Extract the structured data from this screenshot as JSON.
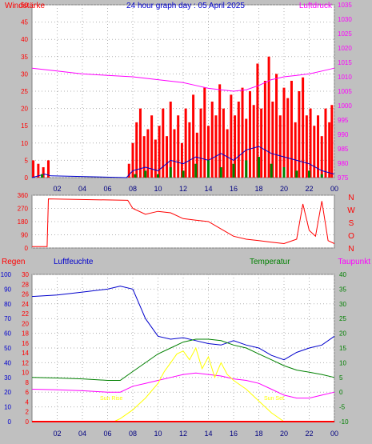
{
  "header": {
    "title": "24 hour graph day : 05 April 2025",
    "left_label": "Windstärke",
    "right_label": "Luftdruck"
  },
  "labels": {
    "regen": "Regen",
    "luftfeuchte": "Luftfeuchte",
    "temperatur": "Temperatur",
    "taupunkt": "Taupunkt",
    "sun_rise": "Sun Rise",
    "sun_set": "Sun Set",
    "dir_letters": [
      "N",
      "W",
      "S",
      "O",
      "N"
    ]
  },
  "colors": {
    "background": "#c0c0c0",
    "plot_bg": "#ffffff",
    "wind": "#ff0000",
    "gust_avg": "#0000cc",
    "pressure": "#ff00ff",
    "green": "#008000",
    "humidity": "#0000cc",
    "temperature": "#008000",
    "dewpoint": "#ff00ff",
    "sun": "#ffff00",
    "rain": "#ff0000"
  },
  "chart_data": [
    {
      "type": "line",
      "title": "24 hour graph day : 05 April 2025",
      "x_ticks": [
        "02",
        "04",
        "06",
        "08",
        "10",
        "12",
        "14",
        "16",
        "18",
        "20",
        "22",
        "00"
      ],
      "xlim": [
        0,
        24
      ],
      "left_axis": {
        "label": "Windstärke",
        "ticks": [
          0,
          5,
          10,
          15,
          20,
          25,
          30,
          35,
          40,
          45,
          50
        ],
        "ylim": [
          0,
          50
        ]
      },
      "right_axis": {
        "label": "Luftdruck",
        "ticks": [
          975,
          980,
          985,
          990,
          995,
          1000,
          1005,
          1010,
          1015,
          1020,
          1025,
          1030,
          1035
        ],
        "ylim": [
          975,
          1035
        ]
      },
      "series": [
        {
          "type": "bar",
          "axis": "left",
          "color": "#ff0000",
          "points": [
            [
              0.1,
              5
            ],
            [
              0.5,
              4
            ],
            [
              0.9,
              3
            ],
            [
              1.3,
              5
            ],
            [
              7.7,
              4
            ],
            [
              8.0,
              10
            ],
            [
              8.3,
              16
            ],
            [
              8.6,
              20
            ],
            [
              8.9,
              12
            ],
            [
              9.2,
              14
            ],
            [
              9.5,
              18
            ],
            [
              9.8,
              11
            ],
            [
              10.1,
              15
            ],
            [
              10.4,
              20
            ],
            [
              10.7,
              12
            ],
            [
              11.0,
              22
            ],
            [
              11.3,
              14
            ],
            [
              11.6,
              18
            ],
            [
              11.9,
              10
            ],
            [
              12.2,
              20
            ],
            [
              12.5,
              16
            ],
            [
              12.8,
              24
            ],
            [
              13.1,
              13
            ],
            [
              13.4,
              20
            ],
            [
              13.7,
              26
            ],
            [
              14.0,
              15
            ],
            [
              14.3,
              22
            ],
            [
              14.6,
              18
            ],
            [
              14.9,
              27
            ],
            [
              15.2,
              20
            ],
            [
              15.5,
              14
            ],
            [
              15.8,
              24
            ],
            [
              16.1,
              18
            ],
            [
              16.4,
              22
            ],
            [
              16.7,
              26
            ],
            [
              17.0,
              17
            ],
            [
              17.3,
              25
            ],
            [
              17.6,
              21
            ],
            [
              17.9,
              33
            ],
            [
              18.2,
              20
            ],
            [
              18.5,
              28
            ],
            [
              18.8,
              35
            ],
            [
              19.1,
              22
            ],
            [
              19.4,
              30
            ],
            [
              19.7,
              18
            ],
            [
              20.0,
              26
            ],
            [
              20.3,
              23
            ],
            [
              20.6,
              28
            ],
            [
              20.9,
              16
            ],
            [
              21.2,
              25
            ],
            [
              21.5,
              29
            ],
            [
              21.8,
              18
            ],
            [
              22.1,
              20
            ],
            [
              22.4,
              15
            ],
            [
              22.7,
              18
            ],
            [
              23.0,
              12
            ],
            [
              23.3,
              20
            ],
            [
              23.6,
              16
            ],
            [
              23.8,
              21
            ]
          ]
        },
        {
          "type": "line",
          "axis": "left",
          "color": "#0000cc",
          "points": [
            [
              0,
              0
            ],
            [
              1,
              1
            ],
            [
              1.5,
              0.5
            ],
            [
              7.5,
              0
            ],
            [
              8,
              2
            ],
            [
              9,
              3
            ],
            [
              10,
              2
            ],
            [
              11,
              5
            ],
            [
              12,
              4
            ],
            [
              13,
              6
            ],
            [
              14,
              5
            ],
            [
              15,
              7
            ],
            [
              16,
              5
            ],
            [
              17,
              8
            ],
            [
              18,
              9
            ],
            [
              19,
              7
            ],
            [
              20,
              6
            ],
            [
              21,
              5
            ],
            [
              22,
              4
            ],
            [
              23,
              2
            ],
            [
              24,
              1
            ]
          ]
        },
        {
          "type": "bar",
          "axis": "left",
          "color": "#008000",
          "points": [
            [
              0.8,
              1
            ],
            [
              8.2,
              1
            ],
            [
              9.0,
              2
            ],
            [
              10.0,
              1
            ],
            [
              11.0,
              3
            ],
            [
              12.0,
              2
            ],
            [
              13.0,
              4
            ],
            [
              14.0,
              5
            ],
            [
              15.0,
              3
            ],
            [
              16.0,
              4
            ],
            [
              17.0,
              5
            ],
            [
              18.0,
              6
            ],
            [
              19.0,
              4
            ],
            [
              20.0,
              3
            ],
            [
              21.0,
              2
            ],
            [
              22.0,
              2
            ],
            [
              23.0,
              1
            ]
          ]
        },
        {
          "type": "line",
          "axis": "right",
          "color": "#ff00ff",
          "points": [
            [
              0,
              1013
            ],
            [
              2,
              1012
            ],
            [
              4,
              1011
            ],
            [
              6,
              1010.5
            ],
            [
              8,
              1010
            ],
            [
              10,
              1009
            ],
            [
              12,
              1008
            ],
            [
              13,
              1007
            ],
            [
              14,
              1006
            ],
            [
              15,
              1005.5
            ],
            [
              16,
              1005
            ],
            [
              17,
              1005.5
            ],
            [
              18,
              1007
            ],
            [
              19,
              1009
            ],
            [
              20,
              1010
            ],
            [
              21,
              1010.5
            ],
            [
              22,
              1011
            ],
            [
              23,
              1012
            ],
            [
              24,
              1013
            ]
          ]
        }
      ]
    },
    {
      "type": "line",
      "title": "",
      "x_ticks": [],
      "xlim": [
        0,
        24
      ],
      "left_axis": {
        "ticks": [
          0,
          90,
          180,
          270,
          360
        ],
        "ylim": [
          0,
          360
        ]
      },
      "right_axis": {
        "labels": [
          "N",
          "W",
          "S",
          "O",
          "N"
        ]
      },
      "series": [
        {
          "color": "#ff0000",
          "points": [
            [
              0,
              10
            ],
            [
              1.2,
              10
            ],
            [
              1.3,
              335
            ],
            [
              7.6,
              325
            ],
            [
              8.0,
              270
            ],
            [
              9,
              230
            ],
            [
              10,
              250
            ],
            [
              11,
              240
            ],
            [
              12,
              200
            ],
            [
              13,
              190
            ],
            [
              14,
              180
            ],
            [
              15,
              130
            ],
            [
              16,
              80
            ],
            [
              17,
              60
            ],
            [
              18,
              50
            ],
            [
              19,
              40
            ],
            [
              20,
              30
            ],
            [
              21,
              60
            ],
            [
              21.5,
              300
            ],
            [
              22,
              120
            ],
            [
              22.5,
              80
            ],
            [
              23,
              320
            ],
            [
              23.5,
              50
            ],
            [
              24,
              30
            ]
          ]
        }
      ]
    },
    {
      "type": "line",
      "title": "",
      "x_ticks": [
        "02",
        "04",
        "06",
        "08",
        "10",
        "12",
        "14",
        "16",
        "18",
        "20",
        "22",
        "00"
      ],
      "xlim": [
        0,
        24
      ],
      "axes": [
        {
          "label": "",
          "ticks": [
            0,
            10,
            20,
            30,
            40,
            50,
            60,
            70,
            80,
            90,
            100
          ],
          "ylim": [
            0,
            100
          ]
        },
        {
          "label": "",
          "ticks": [
            0,
            2,
            4,
            6,
            8,
            10,
            12,
            14,
            16,
            18,
            20,
            22,
            24,
            26,
            28,
            30
          ],
          "ylim": [
            0,
            30
          ]
        },
        {
          "label": "",
          "ticks": [
            -10,
            -5,
            0,
            5,
            10,
            15,
            20,
            25,
            30,
            35,
            40
          ],
          "ylim": [
            -10,
            40
          ]
        }
      ],
      "annotations": [
        "Sun Rise",
        "Sun Set"
      ],
      "series": [
        {
          "axis": "humidity",
          "color": "#0000cc",
          "points": [
            [
              0,
              85
            ],
            [
              2,
              86
            ],
            [
              4,
              88
            ],
            [
              6,
              90
            ],
            [
              7,
              92
            ],
            [
              8,
              90
            ],
            [
              9,
              70
            ],
            [
              10,
              58
            ],
            [
              11,
              56
            ],
            [
              12,
              57
            ],
            [
              13,
              55
            ],
            [
              14,
              53
            ],
            [
              15,
              52
            ],
            [
              16,
              55
            ],
            [
              17,
              52
            ],
            [
              18,
              50
            ],
            [
              19,
              45
            ],
            [
              20,
              42
            ],
            [
              21,
              47
            ],
            [
              22,
              50
            ],
            [
              23,
              52
            ],
            [
              24,
              58
            ]
          ]
        },
        {
          "axis": "temperature",
          "color": "#008000",
          "points": [
            [
              0,
              5
            ],
            [
              2,
              4.8
            ],
            [
              4,
              4.5
            ],
            [
              6,
              4
            ],
            [
              7,
              4
            ],
            [
              8,
              7
            ],
            [
              9,
              10
            ],
            [
              10,
              13
            ],
            [
              11,
              15
            ],
            [
              12,
              17
            ],
            [
              13,
              18
            ],
            [
              14,
              18
            ],
            [
              15,
              17.5
            ],
            [
              16,
              16
            ],
            [
              17,
              15
            ],
            [
              18,
              13
            ],
            [
              19,
              11
            ],
            [
              20,
              9
            ],
            [
              21,
              7.5
            ],
            [
              22,
              6.8
            ],
            [
              23,
              6
            ],
            [
              24,
              5
            ]
          ]
        },
        {
          "axis": "temperature",
          "color": "#ff00ff",
          "points": [
            [
              0,
              1
            ],
            [
              2,
              0.8
            ],
            [
              4,
              0.5
            ],
            [
              6,
              0
            ],
            [
              7,
              0
            ],
            [
              8,
              2
            ],
            [
              9,
              3
            ],
            [
              10,
              4
            ],
            [
              11,
              5
            ],
            [
              12,
              6
            ],
            [
              13,
              6.5
            ],
            [
              14,
              6
            ],
            [
              15,
              5.5
            ],
            [
              16,
              4.5
            ],
            [
              17,
              4
            ],
            [
              18,
              3
            ],
            [
              19,
              1
            ],
            [
              20,
              -1
            ],
            [
              21,
              -2
            ],
            [
              22,
              -2
            ],
            [
              23,
              -1
            ],
            [
              24,
              0
            ]
          ]
        },
        {
          "axis": "temperature",
          "color": "#ffff00",
          "points": [
            [
              6.5,
              -10
            ],
            [
              7,
              -9
            ],
            [
              8,
              -6
            ],
            [
              9,
              -2
            ],
            [
              10,
              3
            ],
            [
              10.5,
              7
            ],
            [
              11,
              10
            ],
            [
              11.5,
              13
            ],
            [
              12,
              14
            ],
            [
              12.5,
              11
            ],
            [
              13,
              15
            ],
            [
              13.5,
              8
            ],
            [
              14,
              12
            ],
            [
              14.5,
              5
            ],
            [
              15,
              10
            ],
            [
              15.5,
              6
            ],
            [
              16,
              4
            ],
            [
              17,
              1
            ],
            [
              18,
              -3
            ],
            [
              19,
              -7
            ],
            [
              20,
              -10
            ]
          ]
        },
        {
          "axis": "rain",
          "color": "#ff0000",
          "points": [
            [
              0,
              0
            ],
            [
              24,
              0
            ]
          ]
        }
      ]
    }
  ]
}
